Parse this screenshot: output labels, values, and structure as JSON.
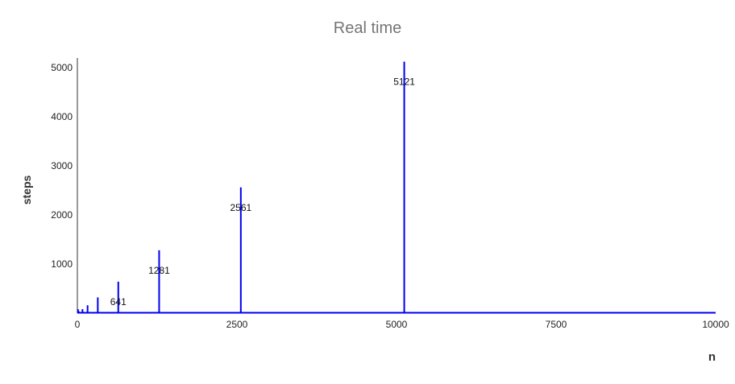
{
  "chart_data": {
    "type": "line",
    "title": "Real time",
    "xlabel": "n",
    "ylabel": "steps",
    "xlim": [
      0,
      10000
    ],
    "ylim": [
      0,
      5200
    ],
    "x_ticks": [
      "0",
      "2500",
      "5000",
      "7500",
      "10000"
    ],
    "y_ticks": [
      "1000",
      "2000",
      "3000",
      "4000",
      "5000"
    ],
    "grid": false,
    "series_color": "#0000ee",
    "spikes": [
      {
        "x": 10,
        "y": 81
      },
      {
        "x": 20,
        "y": 41
      },
      {
        "x": 40,
        "y": 21
      },
      {
        "x": 80,
        "y": 81
      },
      {
        "x": 160,
        "y": 161
      },
      {
        "x": 320,
        "y": 321
      },
      {
        "x": 641,
        "y": 641
      },
      {
        "x": 1281,
        "y": 1281
      },
      {
        "x": 2561,
        "y": 2561
      },
      {
        "x": 5121,
        "y": 5121
      }
    ],
    "data_labels": [
      {
        "x": 641,
        "text": "641"
      },
      {
        "x": 1281,
        "text": "1281"
      },
      {
        "x": 2561,
        "text": "2561"
      },
      {
        "x": 5121,
        "text": "5121"
      }
    ],
    "baseline": {
      "x_start": 0,
      "x_end": 10000,
      "y": 1
    }
  }
}
